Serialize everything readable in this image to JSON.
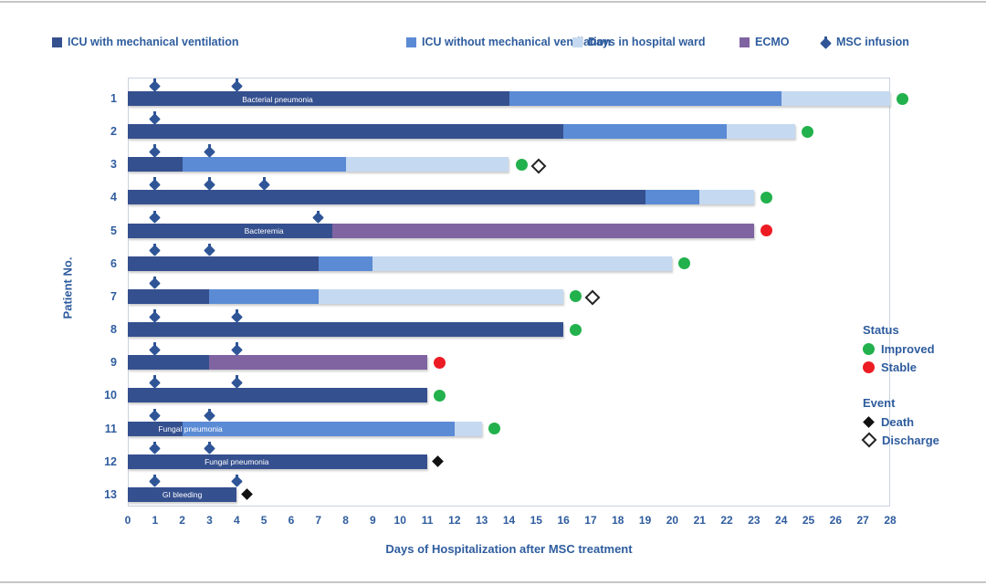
{
  "text_color": "#2E5C9E",
  "segment_types": {
    "icu_mv": {
      "label": "ICU with mechanical ventilation",
      "color": "#35508F"
    },
    "icu_no_mv": {
      "label": "ICU without mechanical ventilation",
      "color": "#5B8BD5"
    },
    "ward": {
      "label": "Days in hospital ward",
      "color": "#C5D9F1"
    },
    "ecmo": {
      "label": "ECMO",
      "color": "#8064A2"
    }
  },
  "msc_marker": {
    "label": "MSC infusion",
    "color": "#2F5597"
  },
  "legend": {
    "items": [
      {
        "type": "icu_mv",
        "label": "ICU with mechanical ventilation"
      },
      {
        "type": "icu_no_mv",
        "label": "ICU without mechanical ventilation"
      },
      {
        "type": "ward",
        "label": "Days in hospital ward"
      },
      {
        "type": "ecmo",
        "label": "ECMO"
      },
      {
        "type": "msc",
        "label": "MSC infusion"
      }
    ]
  },
  "status_legend": {
    "title": "Status",
    "items": [
      {
        "label": "Improved",
        "color": "#22B14C"
      },
      {
        "label": "Stable",
        "color": "#ED1C24"
      }
    ]
  },
  "event_legend": {
    "title": "Event",
    "items": [
      {
        "label": "Death",
        "marker": "filled-diamond"
      },
      {
        "label": "Discharge",
        "marker": "open-diamond"
      }
    ]
  },
  "chart_data": {
    "type": "bar",
    "subtype": "horizontal-stacked-timeline",
    "title": "",
    "xlabel": "Days of Hospitalization after MSC treatment",
    "ylabel": "Patient No.",
    "xlim": [
      0,
      28
    ],
    "xticks": [
      0,
      1,
      2,
      3,
      4,
      5,
      6,
      7,
      8,
      9,
      10,
      11,
      12,
      13,
      14,
      15,
      16,
      17,
      18,
      19,
      20,
      21,
      22,
      23,
      24,
      25,
      26,
      27,
      28
    ],
    "grid": false,
    "status_colors": {
      "Improved": "#22B14C",
      "Stable": "#ED1C24"
    },
    "patients": [
      {
        "id": 1,
        "segments": [
          [
            "icu_mv",
            0,
            14
          ],
          [
            "icu_no_mv",
            14,
            24
          ],
          [
            "ward",
            24,
            28
          ]
        ],
        "bar_label": {
          "text": "Bacterial pneumonia",
          "center_day": 5.5
        },
        "infusions": [
          1,
          4
        ],
        "status": "Improved",
        "events": []
      },
      {
        "id": 2,
        "segments": [
          [
            "icu_mv",
            0,
            16
          ],
          [
            "icu_no_mv",
            16,
            22
          ],
          [
            "ward",
            22,
            24.5
          ]
        ],
        "infusions": [
          1
        ],
        "status": "Improved",
        "events": []
      },
      {
        "id": 3,
        "segments": [
          [
            "icu_mv",
            0,
            2
          ],
          [
            "icu_no_mv",
            2,
            8
          ],
          [
            "ward",
            8,
            14
          ]
        ],
        "infusions": [
          1,
          3
        ],
        "status": "Improved",
        "events": [
          "Discharge"
        ]
      },
      {
        "id": 4,
        "segments": [
          [
            "icu_mv",
            0,
            19
          ],
          [
            "icu_no_mv",
            19,
            21
          ],
          [
            "ward",
            21,
            23
          ]
        ],
        "infusions": [
          1,
          3,
          5
        ],
        "status": "Improved",
        "events": []
      },
      {
        "id": 5,
        "segments": [
          [
            "icu_mv",
            0,
            7.5
          ],
          [
            "ecmo",
            7.5,
            23
          ]
        ],
        "bar_label": {
          "text": "Bacteremia",
          "center_day": 5
        },
        "infusions": [
          1,
          7
        ],
        "status": "Stable",
        "events": []
      },
      {
        "id": 6,
        "segments": [
          [
            "icu_mv",
            0,
            7
          ],
          [
            "icu_no_mv",
            7,
            9
          ],
          [
            "ward",
            9,
            20
          ]
        ],
        "infusions": [
          1,
          3
        ],
        "status": "Improved",
        "events": []
      },
      {
        "id": 7,
        "segments": [
          [
            "icu_mv",
            0,
            3
          ],
          [
            "icu_no_mv",
            3,
            7
          ],
          [
            "ward",
            7,
            16
          ]
        ],
        "infusions": [
          1
        ],
        "status": "Improved",
        "events": [
          "Discharge"
        ]
      },
      {
        "id": 8,
        "segments": [
          [
            "icu_mv",
            0,
            16
          ]
        ],
        "infusions": [
          1,
          4
        ],
        "status": "Improved",
        "events": []
      },
      {
        "id": 9,
        "segments": [
          [
            "icu_mv",
            0,
            3
          ],
          [
            "ecmo",
            3,
            11
          ]
        ],
        "infusions": [
          1,
          4
        ],
        "status": "Stable",
        "events": []
      },
      {
        "id": 10,
        "segments": [
          [
            "icu_mv",
            0,
            11
          ]
        ],
        "infusions": [
          1,
          4
        ],
        "status": "Improved",
        "events": []
      },
      {
        "id": 11,
        "segments": [
          [
            "icu_mv",
            0,
            2
          ],
          [
            "icu_no_mv",
            2,
            12
          ],
          [
            "ward",
            12,
            13
          ]
        ],
        "bar_label": {
          "text": "Fungal pneumonia",
          "center_day": 2.3
        },
        "infusions": [
          1,
          3
        ],
        "status": "Improved",
        "events": []
      },
      {
        "id": 12,
        "segments": [
          [
            "icu_mv",
            0,
            11
          ]
        ],
        "bar_label": {
          "text": "Fungal pneumonia",
          "center_day": 4
        },
        "infusions": [
          1,
          3
        ],
        "status": null,
        "events": [
          "Death"
        ]
      },
      {
        "id": 13,
        "segments": [
          [
            "icu_mv",
            0,
            4
          ]
        ],
        "bar_label": {
          "text": "GI bleeding",
          "center_day": 2
        },
        "infusions": [
          1,
          4
        ],
        "status": null,
        "events": [
          "Death"
        ]
      }
    ]
  }
}
